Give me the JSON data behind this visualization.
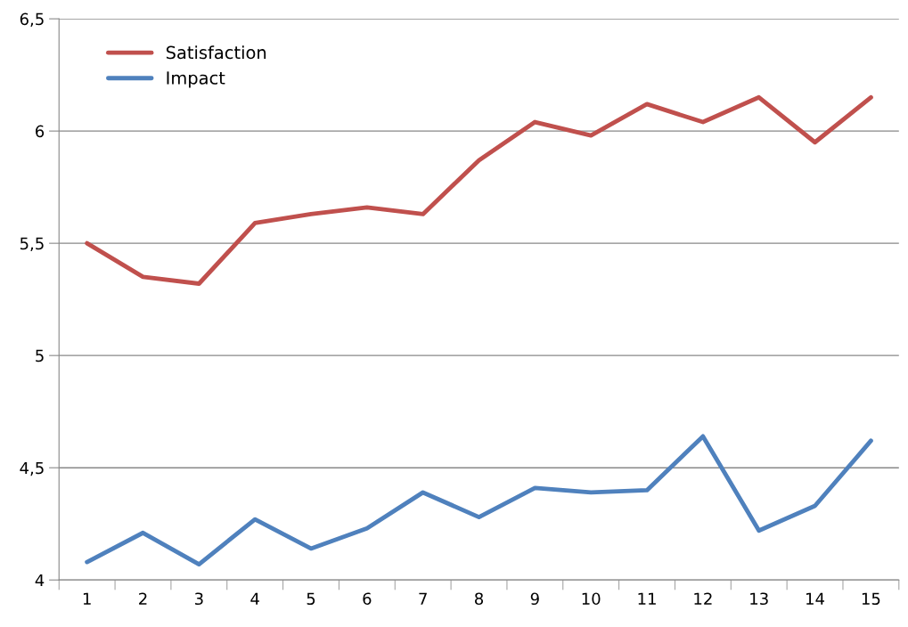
{
  "chart_data": {
    "type": "line",
    "categories": [
      "1",
      "2",
      "3",
      "4",
      "5",
      "6",
      "7",
      "8",
      "9",
      "10",
      "11",
      "12",
      "13",
      "14",
      "15"
    ],
    "series": [
      {
        "name": "Satisfaction",
        "color": "#c0504d",
        "values": [
          5.5,
          5.35,
          5.32,
          5.59,
          5.63,
          5.66,
          5.63,
          5.87,
          6.04,
          5.98,
          6.12,
          6.04,
          6.15,
          5.95,
          6.15
        ]
      },
      {
        "name": "Impact",
        "color": "#4f81bd",
        "values": [
          4.08,
          4.21,
          4.07,
          4.27,
          4.14,
          4.23,
          4.39,
          4.28,
          4.41,
          4.39,
          4.4,
          4.64,
          4.22,
          4.33,
          4.62
        ]
      }
    ],
    "ylim": [
      4,
      6.5
    ],
    "yticks": [
      4,
      {
        "value": 4.5,
        "label": "4,5"
      },
      5,
      {
        "value": 5.5,
        "label": "5,5"
      },
      6,
      {
        "value": 6.5,
        "label": "6,5"
      }
    ],
    "grid": "y",
    "legend": "top left",
    "marker": "none",
    "line_style": "solid"
  }
}
